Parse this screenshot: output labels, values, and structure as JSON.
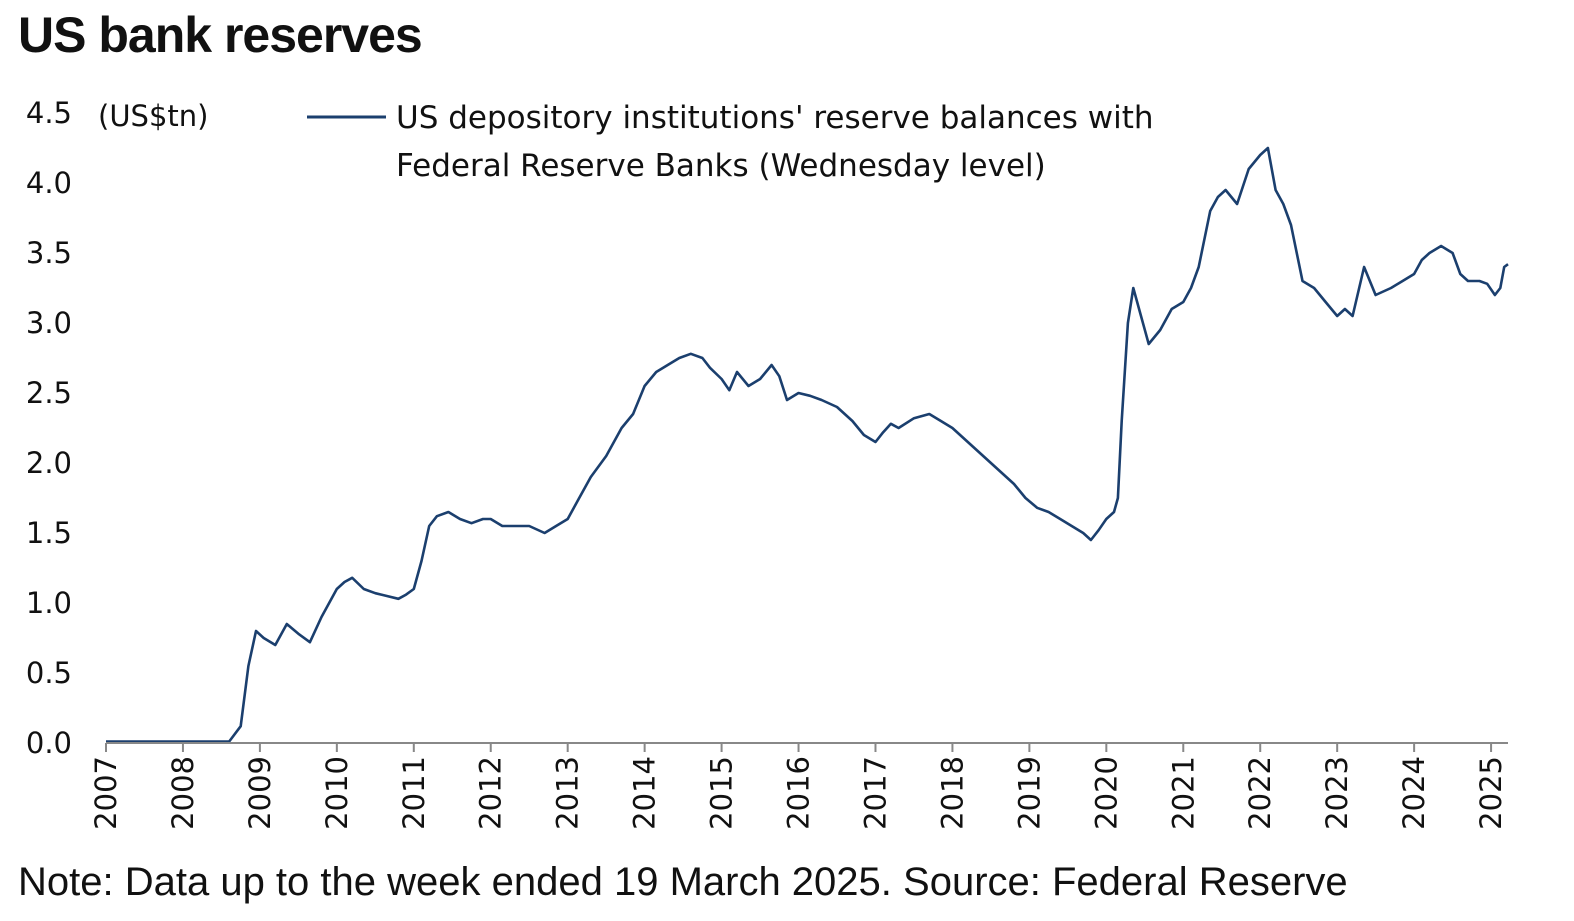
{
  "title": "US bank reserves",
  "note": "Note: Data up to the week ended 19 March 2025. Source: Federal Reserve",
  "chart_data": {
    "type": "line",
    "title": "US bank reserves",
    "ylabel": "(US$tn)",
    "xlabel": "",
    "ylim": [
      0,
      4.5
    ],
    "xlim": [
      2007.0,
      2025.22
    ],
    "yticks": [
      "0.0",
      "0.5",
      "1.0",
      "1.5",
      "2.0",
      "2.5",
      "3.0",
      "3.5",
      "4.0",
      "4.5"
    ],
    "xticks": [
      "2007",
      "2008",
      "2009",
      "2010",
      "2011",
      "2012",
      "2013",
      "2014",
      "2015",
      "2016",
      "2017",
      "2018",
      "2019",
      "2020",
      "2021",
      "2022",
      "2023",
      "2024",
      "2025"
    ],
    "legend_position": "top",
    "grid": false,
    "series": [
      {
        "name": "US depository institutions' reserve balances with Federal Reserve Banks (Wednesday level)",
        "color": "#1b3f6e",
        "x": [
          2007.0,
          2007.5,
          2008.0,
          2008.6,
          2008.75,
          2008.85,
          2008.95,
          2009.05,
          2009.2,
          2009.35,
          2009.5,
          2009.65,
          2009.8,
          2010.0,
          2010.1,
          2010.2,
          2010.35,
          2010.5,
          2010.65,
          2010.8,
          2010.9,
          2011.0,
          2011.1,
          2011.2,
          2011.3,
          2011.45,
          2011.6,
          2011.75,
          2011.9,
          2012.0,
          2012.15,
          2012.3,
          2012.5,
          2012.7,
          2012.85,
          2013.0,
          2013.15,
          2013.3,
          2013.5,
          2013.7,
          2013.85,
          2014.0,
          2014.15,
          2014.3,
          2014.45,
          2014.6,
          2014.75,
          2014.85,
          2015.0,
          2015.1,
          2015.2,
          2015.35,
          2015.5,
          2015.65,
          2015.75,
          2015.85,
          2016.0,
          2016.15,
          2016.3,
          2016.5,
          2016.7,
          2016.85,
          2017.0,
          2017.1,
          2017.2,
          2017.3,
          2017.5,
          2017.7,
          2017.85,
          2018.0,
          2018.2,
          2018.4,
          2018.6,
          2018.8,
          2018.95,
          2019.1,
          2019.25,
          2019.4,
          2019.55,
          2019.7,
          2019.8,
          2019.9,
          2020.0,
          2020.1,
          2020.15,
          2020.2,
          2020.28,
          2020.35,
          2020.45,
          2020.55,
          2020.7,
          2020.85,
          2021.0,
          2021.1,
          2021.2,
          2021.35,
          2021.45,
          2021.55,
          2021.7,
          2021.85,
          2022.0,
          2022.1,
          2022.2,
          2022.3,
          2022.4,
          2022.55,
          2022.7,
          2022.85,
          2023.0,
          2023.1,
          2023.2,
          2023.35,
          2023.5,
          2023.7,
          2023.85,
          2024.0,
          2024.1,
          2024.2,
          2024.35,
          2024.5,
          2024.6,
          2024.7,
          2024.85,
          2024.95,
          2025.05,
          2025.12,
          2025.17,
          2025.22
        ],
        "values": [
          0.01,
          0.01,
          0.01,
          0.01,
          0.12,
          0.55,
          0.8,
          0.75,
          0.7,
          0.85,
          0.78,
          0.72,
          0.9,
          1.1,
          1.15,
          1.18,
          1.1,
          1.07,
          1.05,
          1.03,
          1.06,
          1.1,
          1.3,
          1.55,
          1.62,
          1.65,
          1.6,
          1.57,
          1.6,
          1.6,
          1.55,
          1.55,
          1.55,
          1.5,
          1.55,
          1.6,
          1.75,
          1.9,
          2.05,
          2.25,
          2.35,
          2.55,
          2.65,
          2.7,
          2.75,
          2.78,
          2.75,
          2.68,
          2.6,
          2.52,
          2.65,
          2.55,
          2.6,
          2.7,
          2.62,
          2.45,
          2.5,
          2.48,
          2.45,
          2.4,
          2.3,
          2.2,
          2.15,
          2.22,
          2.28,
          2.25,
          2.32,
          2.35,
          2.3,
          2.25,
          2.15,
          2.05,
          1.95,
          1.85,
          1.75,
          1.68,
          1.65,
          1.6,
          1.55,
          1.5,
          1.45,
          1.52,
          1.6,
          1.65,
          1.75,
          2.3,
          3.0,
          3.25,
          3.05,
          2.85,
          2.95,
          3.1,
          3.15,
          3.25,
          3.4,
          3.8,
          3.9,
          3.95,
          3.85,
          4.1,
          4.2,
          4.25,
          3.95,
          3.85,
          3.7,
          3.3,
          3.25,
          3.15,
          3.05,
          3.1,
          3.05,
          3.4,
          3.2,
          3.25,
          3.3,
          3.35,
          3.45,
          3.5,
          3.55,
          3.5,
          3.35,
          3.3,
          3.3,
          3.28,
          3.2,
          3.25,
          3.4,
          3.42
        ]
      }
    ]
  }
}
